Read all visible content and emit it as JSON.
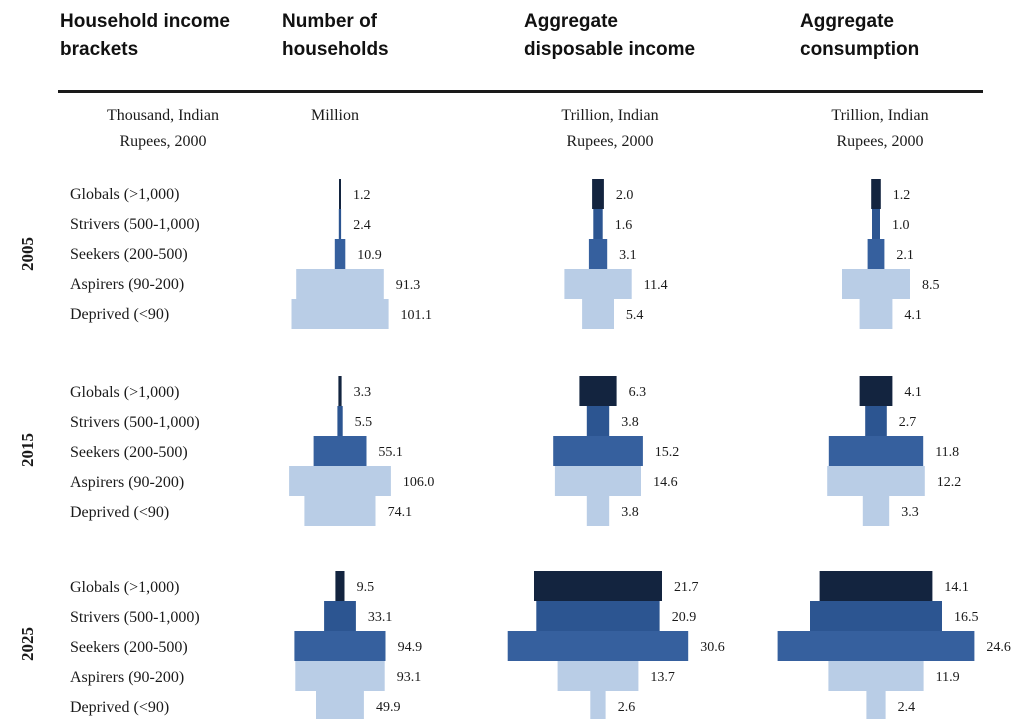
{
  "headers": {
    "brackets": [
      "Household income",
      "brackets"
    ],
    "households": [
      "Number of",
      "households"
    ],
    "income": [
      "Aggregate",
      "disposable income"
    ],
    "consumption": [
      "Aggregate",
      "consumption"
    ]
  },
  "units": {
    "brackets": [
      "Thousand, Indian",
      "Rupees, 2000"
    ],
    "households": [
      "Million"
    ],
    "income": [
      "Trillion, Indian",
      "Rupees, 2000"
    ],
    "consumption": [
      "Trillion, Indian",
      "Rupees, 2000"
    ]
  },
  "colors": {
    "Globals": "#13243f",
    "Strivers": "#2c5591",
    "Seekers": "#36609e",
    "Aspirers": "#b9cde6",
    "Deprived": "#b9cde6"
  },
  "chart_data": {
    "type": "bar",
    "orientation": "horizontal-centered",
    "categories": [
      "Globals (>1,000)",
      "Strivers (500-1,000)",
      "Seekers (200-500)",
      "Aspirers (90-200)",
      "Deprived (<90)"
    ],
    "category_keys": [
      "Globals",
      "Strivers",
      "Seekers",
      "Aspirers",
      "Deprived"
    ],
    "years": [
      "2005",
      "2015",
      "2025"
    ],
    "panels": [
      {
        "name": "households",
        "values": {
          "2005": [
            1.2,
            2.4,
            10.9,
            91.3,
            101.1
          ],
          "2015": [
            3.3,
            5.5,
            55.1,
            106.0,
            74.1
          ],
          "2025": [
            9.5,
            33.1,
            94.9,
            93.1,
            49.9
          ]
        },
        "labels": {
          "2005": [
            "1.2",
            "2.4",
            "10.9",
            "91.3",
            "101.1"
          ],
          "2015": [
            "3.3",
            "5.5",
            "55.1",
            "106.0",
            "74.1"
          ],
          "2025": [
            "9.5",
            "33.1",
            "94.9",
            "93.1",
            "49.9"
          ]
        }
      },
      {
        "name": "income",
        "values": {
          "2005": [
            2.0,
            1.6,
            3.1,
            11.4,
            5.4
          ],
          "2015": [
            6.3,
            3.8,
            15.2,
            14.6,
            3.8
          ],
          "2025": [
            21.7,
            20.9,
            30.6,
            13.7,
            2.6
          ]
        },
        "labels": {
          "2005": [
            "2.0",
            "1.6",
            "3.1",
            "11.4",
            "5.4"
          ],
          "2015": [
            "6.3",
            "3.8",
            "15.2",
            "14.6",
            "3.8"
          ],
          "2025": [
            "21.7",
            "20.9",
            "30.6",
            "13.7",
            "2.6"
          ]
        }
      },
      {
        "name": "consumption",
        "values": {
          "2005": [
            1.2,
            1.0,
            2.1,
            8.5,
            4.1
          ],
          "2015": [
            4.1,
            2.7,
            11.8,
            12.2,
            3.3
          ],
          "2025": [
            14.1,
            16.5,
            24.6,
            11.9,
            2.4
          ]
        },
        "labels": {
          "2005": [
            "1.2",
            "1.0",
            "2.1",
            "8.5",
            "4.1"
          ],
          "2015": [
            "4.1",
            "2.7",
            "11.8",
            "12.2",
            "3.3"
          ],
          "2025": [
            "14.1",
            "16.5",
            "24.6",
            "11.9",
            "2.4"
          ]
        }
      }
    ]
  }
}
